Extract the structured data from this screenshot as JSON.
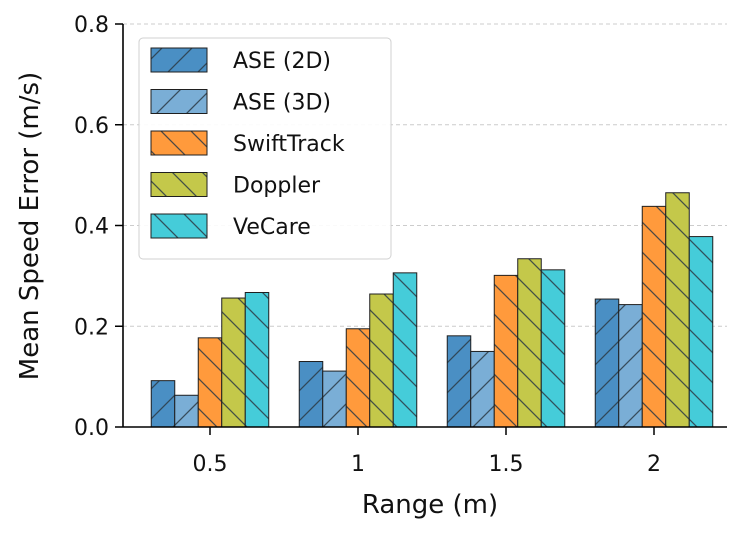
{
  "chart_data": {
    "type": "bar",
    "title": "",
    "xlabel": "Range (m)",
    "ylabel": "Mean Speed Error (m/s)",
    "ylim": [
      0,
      0.8
    ],
    "yticks": [
      "0.0",
      "0.2",
      "0.4",
      "0.6",
      "0.8"
    ],
    "categories": [
      "0.5",
      "1",
      "1.5",
      "2"
    ],
    "grid": "horizontal dashed",
    "legend_position": "top-left",
    "series": [
      {
        "name": "ASE (2D)",
        "values": [
          0.092,
          0.13,
          0.181,
          0.254
        ],
        "color": "#4a8fc4",
        "hatch": "forward"
      },
      {
        "name": "ASE (3D)",
        "values": [
          0.063,
          0.111,
          0.15,
          0.243
        ],
        "color": "#7aaed6",
        "hatch": "forward"
      },
      {
        "name": "SwiftTrack",
        "values": [
          0.177,
          0.195,
          0.301,
          0.438
        ],
        "color": "#ff9a3c",
        "hatch": "back"
      },
      {
        "name": "Doppler",
        "values": [
          0.256,
          0.264,
          0.334,
          0.465
        ],
        "color": "#c4c84a",
        "hatch": "back"
      },
      {
        "name": "VeCare",
        "values": [
          0.267,
          0.306,
          0.312,
          0.378
        ],
        "color": "#45ccd9",
        "hatch": "back"
      }
    ]
  }
}
